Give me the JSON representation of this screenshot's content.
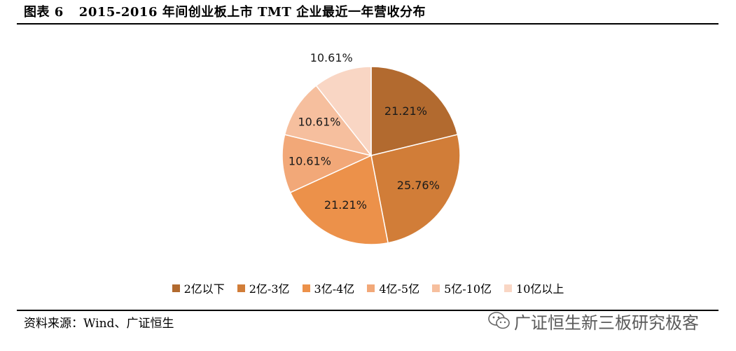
{
  "header": {
    "figure_label": "图表 6",
    "title": "2015-2016 年间创业板上市 TMT 企业最近一年营收分布"
  },
  "chart_data": {
    "type": "pie",
    "categories": [
      "2亿以下",
      "2亿-3亿",
      "3亿-4亿",
      "4亿-5亿",
      "5亿-10亿",
      "10亿以上"
    ],
    "values": [
      21.21,
      25.76,
      21.21,
      10.61,
      10.61,
      10.61
    ],
    "labels": [
      "21.21%",
      "25.76%",
      "21.21%",
      "10.61%",
      "10.61%",
      "10.61%"
    ],
    "colors": [
      "#b26a2f",
      "#d17d38",
      "#ec914a",
      "#f2a878",
      "#f6bf9e",
      "#f9d6c4"
    ],
    "legend_position": "bottom",
    "start_angle_deg": 0,
    "direction": "clockwise"
  },
  "footer": {
    "source": "资料来源：Wind、广证恒生"
  },
  "watermark": {
    "text": "广证恒生新三板研究极客",
    "icon": "wechat-icon"
  }
}
